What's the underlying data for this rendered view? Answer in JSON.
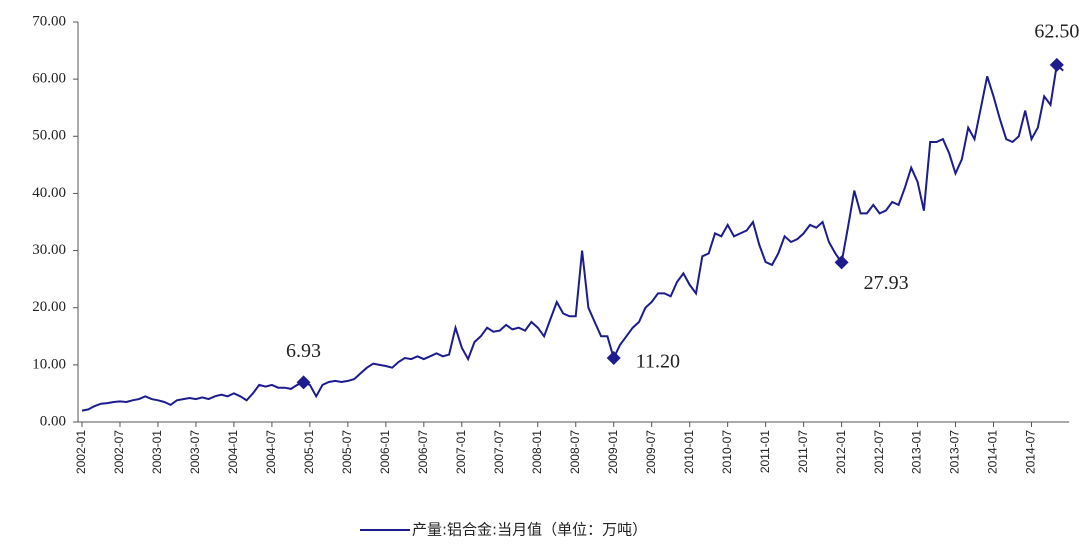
{
  "chart_data": {
    "type": "line",
    "categories": [
      "2002-01",
      null,
      null,
      null,
      null,
      null,
      "2002-07",
      null,
      null,
      null,
      null,
      null,
      "2003-01",
      null,
      null,
      null,
      null,
      null,
      "2003-07",
      null,
      null,
      null,
      null,
      null,
      "2004-01",
      null,
      null,
      null,
      null,
      null,
      "2004-07",
      null,
      null,
      null,
      null,
      null,
      "2005-01",
      null,
      null,
      null,
      null,
      null,
      "2005-07",
      null,
      null,
      null,
      null,
      null,
      "2006-01",
      null,
      null,
      null,
      null,
      null,
      "2006-07",
      null,
      null,
      null,
      null,
      null,
      "2007-01",
      null,
      null,
      null,
      null,
      null,
      "2007-07",
      null,
      null,
      null,
      null,
      null,
      "2008-01",
      null,
      null,
      null,
      null,
      null,
      "2008-07",
      null,
      null,
      null,
      null,
      null,
      "2009-01",
      null,
      null,
      null,
      null,
      null,
      "2009-07",
      null,
      null,
      null,
      null,
      null,
      "2010-01",
      null,
      null,
      null,
      null,
      null,
      "2010-07",
      null,
      null,
      null,
      null,
      null,
      "2011-01",
      null,
      null,
      null,
      null,
      null,
      "2011-07",
      null,
      null,
      null,
      null,
      null,
      "2012-01",
      null,
      null,
      null,
      null,
      null,
      "2012-07",
      null,
      null,
      null,
      null,
      null,
      "2013-01",
      null,
      null,
      null,
      null,
      null,
      "2013-07",
      null,
      null,
      null,
      null,
      null,
      "2014-01",
      null,
      null,
      null,
      null,
      null,
      "2014-07",
      null,
      null,
      null,
      null,
      null
    ],
    "series": [
      {
        "name": "产量:铝合金:当月值（单位：万吨）",
        "color": "#1c1c8e",
        "values": [
          2.0,
          2.2,
          2.8,
          3.2,
          3.3,
          3.5,
          3.6,
          3.5,
          3.8,
          4.0,
          4.5,
          4.0,
          3.8,
          3.5,
          3.0,
          3.8,
          4.0,
          4.2,
          4.0,
          4.3,
          4.0,
          4.5,
          4.8,
          4.5,
          5.0,
          4.5,
          3.8,
          5.0,
          6.5,
          6.2,
          6.5,
          6.0,
          6.0,
          5.8,
          6.5,
          6.93,
          6.5,
          4.5,
          6.5,
          7.0,
          7.2,
          7.0,
          7.2,
          7.5,
          8.5,
          9.5,
          10.2,
          10.0,
          9.8,
          9.5,
          10.5,
          11.2,
          11.0,
          11.5,
          11.0,
          11.5,
          12.0,
          11.5,
          11.8,
          16.5,
          13.0,
          11.0,
          14.0,
          15.0,
          16.5,
          15.8,
          16.0,
          17.0,
          16.2,
          16.5,
          16.0,
          17.5,
          16.5,
          15.0,
          18.0,
          21.0,
          19.0,
          18.5,
          18.5,
          30.0,
          20.0,
          17.5,
          15.0,
          15.0,
          11.2,
          13.5,
          15.0,
          16.5,
          17.5,
          20.0,
          21.0,
          22.5,
          22.5,
          22.0,
          24.5,
          26.0,
          24.0,
          22.5,
          29.0,
          29.5,
          33.0,
          32.5,
          34.5,
          32.5,
          33.0,
          33.5,
          35.0,
          31.0,
          28.0,
          27.5,
          29.5,
          32.5,
          31.5,
          32.0,
          33.0,
          34.5,
          34.0,
          35.0,
          31.5,
          29.5,
          27.93,
          34.0,
          40.5,
          36.5,
          36.5,
          38.0,
          36.5,
          37.0,
          38.5,
          38.0,
          41.0,
          44.5,
          42.0,
          37.0,
          49.0,
          49.0,
          49.5,
          47.0,
          43.5,
          46.0,
          51.5,
          49.5,
          55.0,
          60.5,
          57.0,
          53.0,
          49.5,
          49.0,
          50.0,
          54.5,
          49.5,
          51.5,
          57.0,
          55.5,
          62.5,
          61.5
        ],
        "value_labels": [
          null,
          null,
          null,
          null,
          null,
          null,
          null,
          null,
          null,
          null,
          null,
          null,
          null,
          null,
          null,
          null,
          null,
          null,
          null,
          null,
          null,
          null,
          null,
          null,
          null,
          null,
          null,
          null,
          null,
          null,
          null,
          null,
          null,
          null,
          null,
          "6.93",
          null,
          null,
          null,
          null,
          null,
          null,
          null,
          null,
          null,
          null,
          null,
          null,
          null,
          null,
          null,
          null,
          null,
          null,
          null,
          null,
          null,
          null,
          null,
          null,
          null,
          null,
          null,
          null,
          null,
          null,
          null,
          null,
          null,
          null,
          null,
          null,
          null,
          null,
          null,
          null,
          null,
          null,
          null,
          null,
          null,
          null,
          null,
          null,
          "11.20",
          null,
          null,
          null,
          null,
          null,
          null,
          null,
          null,
          null,
          null,
          null,
          null,
          null,
          null,
          null,
          null,
          null,
          null,
          null,
          null,
          null,
          null,
          null,
          null,
          null,
          null,
          null,
          null,
          null,
          null,
          null,
          null,
          null,
          null,
          null,
          "27.93",
          null,
          null,
          null,
          null,
          null,
          null,
          null,
          null,
          null,
          null,
          null,
          null,
          null,
          null,
          null,
          null,
          null,
          null,
          null,
          null,
          null,
          null,
          null,
          null,
          null,
          null,
          null,
          null,
          null,
          null,
          null,
          null,
          null,
          "62.50",
          null
        ]
      }
    ],
    "ylim": [
      0,
      70
    ],
    "yticks": [
      {
        "value": 0,
        "label": "0.00"
      },
      {
        "value": 10,
        "label": "10.00"
      },
      {
        "value": 20,
        "label": "20.00"
      },
      {
        "value": 30,
        "label": "30.00"
      },
      {
        "value": 40,
        "label": "40.00"
      },
      {
        "value": 50,
        "label": "50.00"
      },
      {
        "value": 60,
        "label": "60.00"
      },
      {
        "value": 70,
        "label": "70.00"
      }
    ],
    "grid": false,
    "legend": "bottom"
  }
}
